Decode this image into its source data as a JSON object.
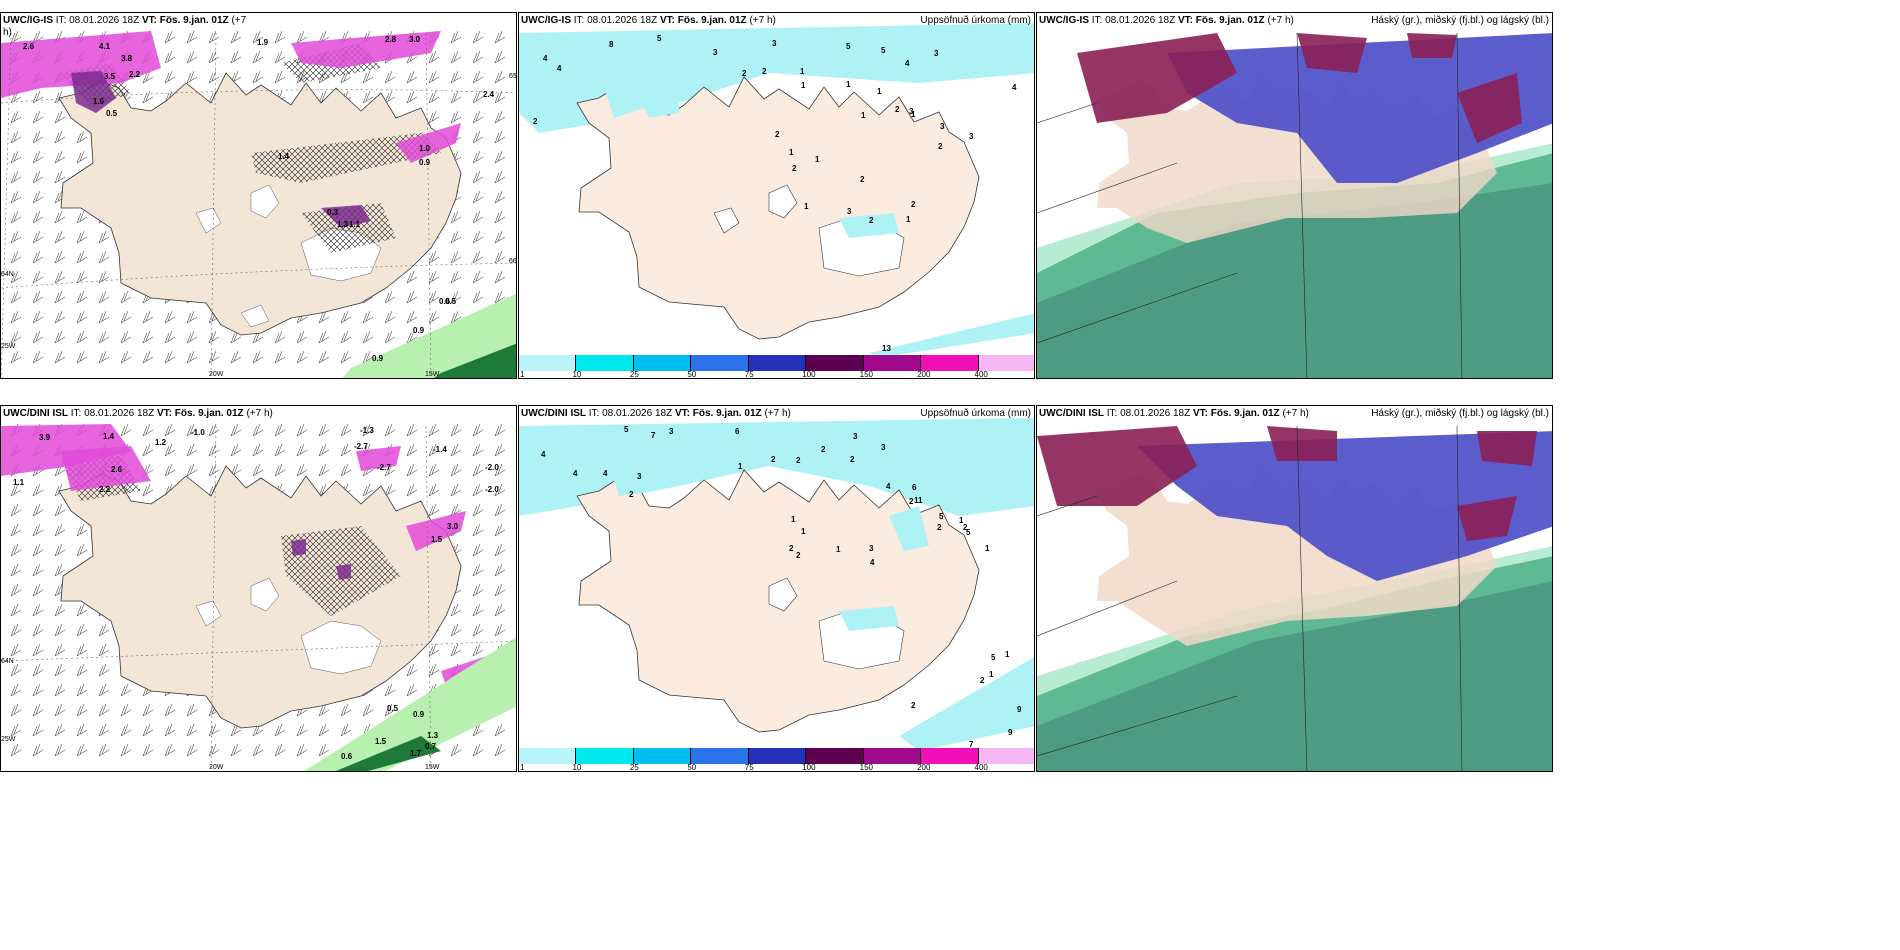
{
  "panels": [
    {
      "id": "p1",
      "model_label": "UWC/IG-IS",
      "it_label": "IT:",
      "it_value": "08.01.2026 18Z",
      "vt_label": "VT:",
      "vt_value": "Fös. 9.jan. 01Z",
      "lead": "(+7",
      "lead_wrap": "h)",
      "right_title": "",
      "grid_labels": [
        "20W",
        "15W",
        "25W",
        "65N",
        "64N",
        "66N"
      ],
      "values": [
        "2.6",
        "4.1",
        "3.8",
        "3.5",
        "1.9",
        "2.8",
        "3.0",
        "1.6",
        "0.5",
        "2.2",
        "1.4",
        "1.0",
        "0.3",
        "1.3",
        "1.1",
        "0.9",
        "2.4",
        "0.5",
        "0.6",
        "0.9",
        "0.9"
      ]
    },
    {
      "id": "p2",
      "model_label": "UWC/IG-IS",
      "it_label": "IT:",
      "it_value": "08.01.2026 18Z",
      "vt_label": "VT:",
      "vt_value": "Fös. 9.jan. 01Z",
      "lead": "(+7 h)",
      "right_title": "Uppsöfnuð úrkoma (mm)",
      "values": [
        "5",
        "8",
        "4",
        "4",
        "3",
        "3",
        "5",
        "5",
        "4",
        "3",
        "2",
        "2",
        "2",
        "1",
        "1",
        "1",
        "1",
        "2",
        "1",
        "2",
        "1",
        "1",
        "3",
        "3",
        "2",
        "3",
        "2",
        "4",
        "2",
        "3",
        "2",
        "1",
        "2",
        "13",
        "1",
        "1"
      ]
    },
    {
      "id": "p3",
      "model_label": "UWC/IG-IS",
      "it_label": "IT:",
      "it_value": "08.01.2026 18Z",
      "vt_label": "VT:",
      "vt_value": "Fös. 9.jan. 01Z",
      "lead": "(+7 h)",
      "right_title": "Háský (gr.), miðský (fj.bl.) og lágský (bl.)"
    },
    {
      "id": "p4",
      "model_label": "UWC/DINI ISL",
      "it_label": "IT:",
      "it_value": "08.01.2026 18Z",
      "vt_label": "VT:",
      "vt_value": "Fös. 9.jan. 01Z",
      "lead": "(+7 h)",
      "right_title": "",
      "grid_labels": [
        "20W",
        "15W",
        "25W",
        "64N"
      ],
      "values": [
        "3.9",
        "1.4",
        "1.2",
        "-1.0",
        "-1.3",
        "-2.7",
        "-1.4",
        "-2.0",
        "-2.0",
        "2.6",
        "2.2",
        "1.1",
        "-2.7",
        "3.0",
        "1.5",
        "0.5",
        "0.9",
        "1.5",
        "0.7",
        "0.6",
        "1.7",
        "1.3"
      ]
    },
    {
      "id": "p5",
      "model_label": "UWC/DINI ISL",
      "it_label": "IT:",
      "it_value": "08.01.2026 18Z",
      "vt_label": "VT:",
      "vt_value": "Fös. 9.jan. 01Z",
      "lead": "(+7 h)",
      "right_title": "Uppsöfnuð úrkoma (mm)",
      "values": [
        "5",
        "7",
        "3",
        "6",
        "3",
        "4",
        "4",
        "4",
        "3",
        "2",
        "1",
        "2",
        "2",
        "2",
        "2",
        "3",
        "1",
        "1",
        "2",
        "2",
        "1",
        "3",
        "4",
        "4",
        "6",
        "11",
        "5",
        "2",
        "1",
        "2",
        "2",
        "1",
        "5",
        "5",
        "1",
        "2",
        "1",
        "2",
        "9",
        "7",
        "9"
      ]
    },
    {
      "id": "p6",
      "model_label": "UWC/DINI ISL",
      "it_label": "IT:",
      "it_value": "08.01.2026 18Z",
      "vt_label": "VT:",
      "vt_value": "Fös. 9.jan. 01Z",
      "lead": "(+7 h)",
      "right_title": "Háský (gr.), miðský (fj.bl.) og lágský (bl.)"
    }
  ],
  "precip_legend": {
    "ticks": [
      "1",
      "10",
      "25",
      "50",
      "75",
      "100",
      "150",
      "200",
      "400"
    ],
    "colors": [
      "#b8f4f8",
      "#00e8ef",
      "#00bff0",
      "#2a73e8",
      "#2430b8",
      "#5e0050",
      "#a00a8a",
      "#f010b8",
      "#f5b8f5"
    ]
  },
  "colors": {
    "land": "#f3e6d6",
    "land_p2": "#fcece0",
    "precip_light": "#aef2f5",
    "pink": "#e24ad8",
    "purple": "#7d2b8f",
    "green_light": "#b8f0b0",
    "green_dark": "#1f7a3a",
    "cloud_high": "#2e8a6c",
    "cloud_mid": "#4a4bc8",
    "cloud_low": "#8a1f55"
  }
}
